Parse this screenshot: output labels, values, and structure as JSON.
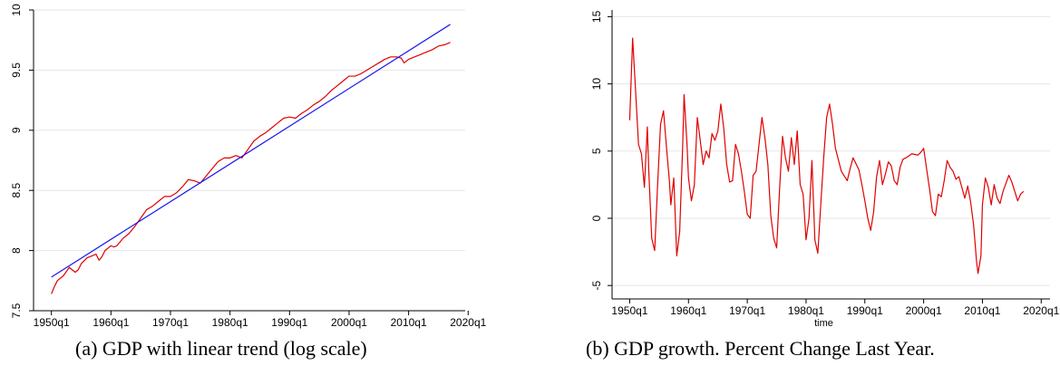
{
  "captions": {
    "a": "(a) GDP with linear trend (log scale)",
    "b": "(b) GDP growth. Percent Change Last Year."
  },
  "colors": {
    "actual": "#e00000",
    "trend": "#1a1aee",
    "grid": "#e6e6e6",
    "axis": "#000000"
  },
  "chart_data": [
    {
      "type": "line",
      "title": "",
      "xlabel": "",
      "ylabel": "",
      "xlim": [
        1947,
        2019.5
      ],
      "ylim": [
        7.5,
        10.0
      ],
      "x_ticks": [
        1950,
        1960,
        1970,
        1980,
        1990,
        2000,
        2010,
        2020
      ],
      "x_tick_labels": [
        "1950q1",
        "1960q1",
        "1970q1",
        "1980q1",
        "1990q1",
        "2000q1",
        "2010q1",
        "2020q1"
      ],
      "y_ticks": [
        7.5,
        8,
        8.5,
        9,
        9.5,
        10
      ],
      "y_tick_labels": [
        "7.5",
        "8",
        "8.5",
        "9",
        "9.5",
        "10"
      ],
      "grid": true,
      "series": [
        {
          "color": "#e00000",
          "x": [
            1950.0,
            1950.5,
            1951.0,
            1952.0,
            1953.0,
            1953.5,
            1954.0,
            1954.5,
            1955.0,
            1956.0,
            1957.0,
            1957.5,
            1958.0,
            1958.5,
            1959.0,
            1960.0,
            1960.5,
            1961.0,
            1962.0,
            1963.0,
            1964.0,
            1965.0,
            1966.0,
            1967.0,
            1968.0,
            1969.0,
            1970.0,
            1971.0,
            1972.0,
            1973.0,
            1974.0,
            1975.0,
            1976.0,
            1977.0,
            1978.0,
            1979.0,
            1980.0,
            1981.0,
            1982.0,
            1983.0,
            1984.0,
            1985.0,
            1986.0,
            1987.0,
            1988.0,
            1989.0,
            1990.0,
            1991.0,
            1992.0,
            1993.0,
            1994.0,
            1995.0,
            1996.0,
            1997.0,
            1998.0,
            1999.0,
            2000.0,
            2001.0,
            2002.0,
            2003.0,
            2004.0,
            2005.0,
            2006.0,
            2007.0,
            2008.0,
            2008.75,
            2009.25,
            2010.0,
            2011.0,
            2012.0,
            2013.0,
            2014.0,
            2015.0,
            2016.0,
            2017.0
          ],
          "y": [
            7.64,
            7.7,
            7.75,
            7.79,
            7.86,
            7.84,
            7.82,
            7.84,
            7.89,
            7.94,
            7.96,
            7.97,
            7.92,
            7.95,
            8.0,
            8.04,
            8.03,
            8.04,
            8.1,
            8.14,
            8.2,
            8.27,
            8.34,
            8.37,
            8.41,
            8.45,
            8.45,
            8.48,
            8.53,
            8.59,
            8.58,
            8.56,
            8.62,
            8.68,
            8.74,
            8.77,
            8.77,
            8.79,
            8.77,
            8.84,
            8.91,
            8.95,
            8.98,
            9.02,
            9.06,
            9.1,
            9.11,
            9.1,
            9.14,
            9.17,
            9.21,
            9.24,
            9.28,
            9.33,
            9.37,
            9.41,
            9.45,
            9.45,
            9.47,
            9.5,
            9.53,
            9.56,
            9.59,
            9.61,
            9.61,
            9.6,
            9.56,
            9.59,
            9.61,
            9.63,
            9.65,
            9.67,
            9.7,
            9.71,
            9.73
          ]
        },
        {
          "color": "#1a1aee",
          "x": [
            1950.0,
            2017.0
          ],
          "y": [
            7.78,
            9.88
          ]
        }
      ]
    },
    {
      "type": "line",
      "title": "",
      "xlabel": "time",
      "ylabel": "",
      "xlim": [
        1947,
        2021.5
      ],
      "ylim": [
        -6,
        15.5
      ],
      "x_ticks": [
        1950,
        1960,
        1970,
        1980,
        1990,
        2000,
        2010,
        2020
      ],
      "x_tick_labels": [
        "1950q1",
        "1960q1",
        "1970q1",
        "1980q1",
        "1990q1",
        "2000q1",
        "2010q1",
        "2020q1"
      ],
      "y_ticks": [
        -5,
        0,
        5,
        10,
        15
      ],
      "y_tick_labels": [
        "-5",
        "0",
        "5",
        "10",
        "15"
      ],
      "grid": true,
      "series": [
        {
          "color": "#e00000",
          "x": [
            1950.0,
            1950.5,
            1951.0,
            1951.5,
            1952.0,
            1952.5,
            1953.0,
            1953.25,
            1953.75,
            1954.25,
            1954.75,
            1955.25,
            1955.75,
            1956.25,
            1956.75,
            1957.0,
            1957.5,
            1958.0,
            1958.5,
            1959.0,
            1959.25,
            1959.75,
            1960.0,
            1960.5,
            1961.0,
            1961.5,
            1962.0,
            1962.5,
            1963.0,
            1963.5,
            1964.0,
            1964.5,
            1965.0,
            1965.5,
            1966.0,
            1966.5,
            1967.0,
            1967.5,
            1968.0,
            1968.5,
            1969.0,
            1969.5,
            1970.0,
            1970.5,
            1971.0,
            1971.5,
            1972.0,
            1972.5,
            1973.0,
            1973.5,
            1974.0,
            1974.5,
            1975.0,
            1975.5,
            1976.0,
            1976.5,
            1977.0,
            1977.5,
            1978.0,
            1978.5,
            1979.0,
            1979.5,
            1980.0,
            1980.5,
            1981.0,
            1981.5,
            1982.0,
            1982.5,
            1983.0,
            1983.5,
            1984.0,
            1984.5,
            1985.0,
            1986.0,
            1987.0,
            1987.5,
            1988.0,
            1989.0,
            1989.5,
            1990.0,
            1990.5,
            1991.0,
            1991.5,
            1992.0,
            1992.5,
            1993.0,
            1993.5,
            1994.0,
            1994.5,
            1995.0,
            1995.5,
            1996.0,
            1996.5,
            1997.0,
            1998.0,
            1999.0,
            1999.5,
            2000.0,
            2000.5,
            2001.0,
            2001.5,
            2002.0,
            2002.5,
            2003.0,
            2003.5,
            2004.0,
            2004.5,
            2005.0,
            2005.5,
            2006.0,
            2006.5,
            2007.0,
            2007.5,
            2008.0,
            2008.5,
            2009.0,
            2009.25,
            2009.75,
            2010.0,
            2010.5,
            2011.0,
            2011.5,
            2012.0,
            2012.5,
            2013.0,
            2013.5,
            2014.0,
            2014.5,
            2015.0,
            2015.5,
            2016.0,
            2016.5,
            2017.0
          ],
          "y": [
            7.3,
            13.4,
            9.5,
            5.5,
            4.8,
            2.3,
            6.8,
            3.5,
            -1.5,
            -2.4,
            2.5,
            7.0,
            8.0,
            5.3,
            2.8,
            1.0,
            3.0,
            -2.8,
            -1.0,
            5.2,
            9.2,
            5.5,
            3.0,
            1.3,
            2.5,
            7.5,
            5.8,
            4.0,
            5.0,
            4.5,
            6.3,
            5.8,
            6.5,
            8.5,
            6.7,
            4.0,
            2.7,
            2.8,
            5.5,
            4.8,
            3.5,
            2.0,
            0.3,
            0.0,
            3.2,
            3.5,
            5.5,
            7.5,
            6.0,
            4.0,
            0.2,
            -1.5,
            -2.2,
            2.2,
            6.1,
            4.5,
            3.5,
            6.0,
            4.0,
            6.5,
            2.5,
            1.8,
            -1.6,
            0.0,
            4.3,
            -1.6,
            -2.6,
            1.0,
            4.5,
            7.5,
            8.5,
            7.0,
            5.2,
            3.5,
            2.8,
            3.7,
            4.5,
            3.6,
            2.5,
            1.3,
            0.0,
            -0.9,
            0.5,
            3.1,
            4.3,
            2.5,
            3.3,
            4.2,
            3.9,
            2.8,
            2.5,
            3.8,
            4.4,
            4.5,
            4.8,
            4.7,
            4.9,
            5.2,
            3.7,
            2.2,
            0.5,
            0.2,
            1.8,
            1.6,
            2.8,
            4.3,
            3.8,
            3.5,
            2.9,
            3.1,
            2.3,
            1.5,
            2.4,
            1.2,
            -0.5,
            -3.2,
            -4.1,
            -2.8,
            1.0,
            3.0,
            2.3,
            1.0,
            2.5,
            1.5,
            1.1,
            2.0,
            2.6,
            3.2,
            2.7,
            2.0,
            1.3,
            1.8,
            2.0
          ]
        }
      ]
    }
  ]
}
